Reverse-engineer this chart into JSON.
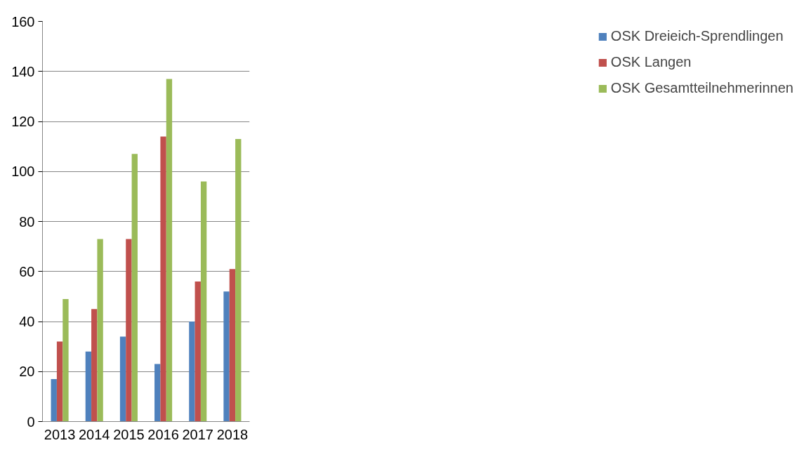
{
  "chart_data": {
    "type": "bar",
    "categories": [
      "2013",
      "2014",
      "2015",
      "2016",
      "2017",
      "2018"
    ],
    "series": [
      {
        "name": "OSK Dreieich-Sprendlingen",
        "color": "#4f81bd",
        "values": [
          17,
          28,
          34,
          23,
          40,
          52
        ]
      },
      {
        "name": "OSK Langen",
        "color": "#c0504d",
        "values": [
          32,
          45,
          73,
          114,
          56,
          61
        ]
      },
      {
        "name": "OSK Gesamtteilnehmerinnen",
        "color": "#9bbb59",
        "values": [
          49,
          73,
          107,
          137,
          96,
          113
        ]
      }
    ],
    "ylim": [
      0,
      160
    ],
    "yticks": [
      0,
      20,
      40,
      60,
      80,
      100,
      120,
      140,
      160
    ],
    "grid": "y",
    "legend": "right"
  }
}
